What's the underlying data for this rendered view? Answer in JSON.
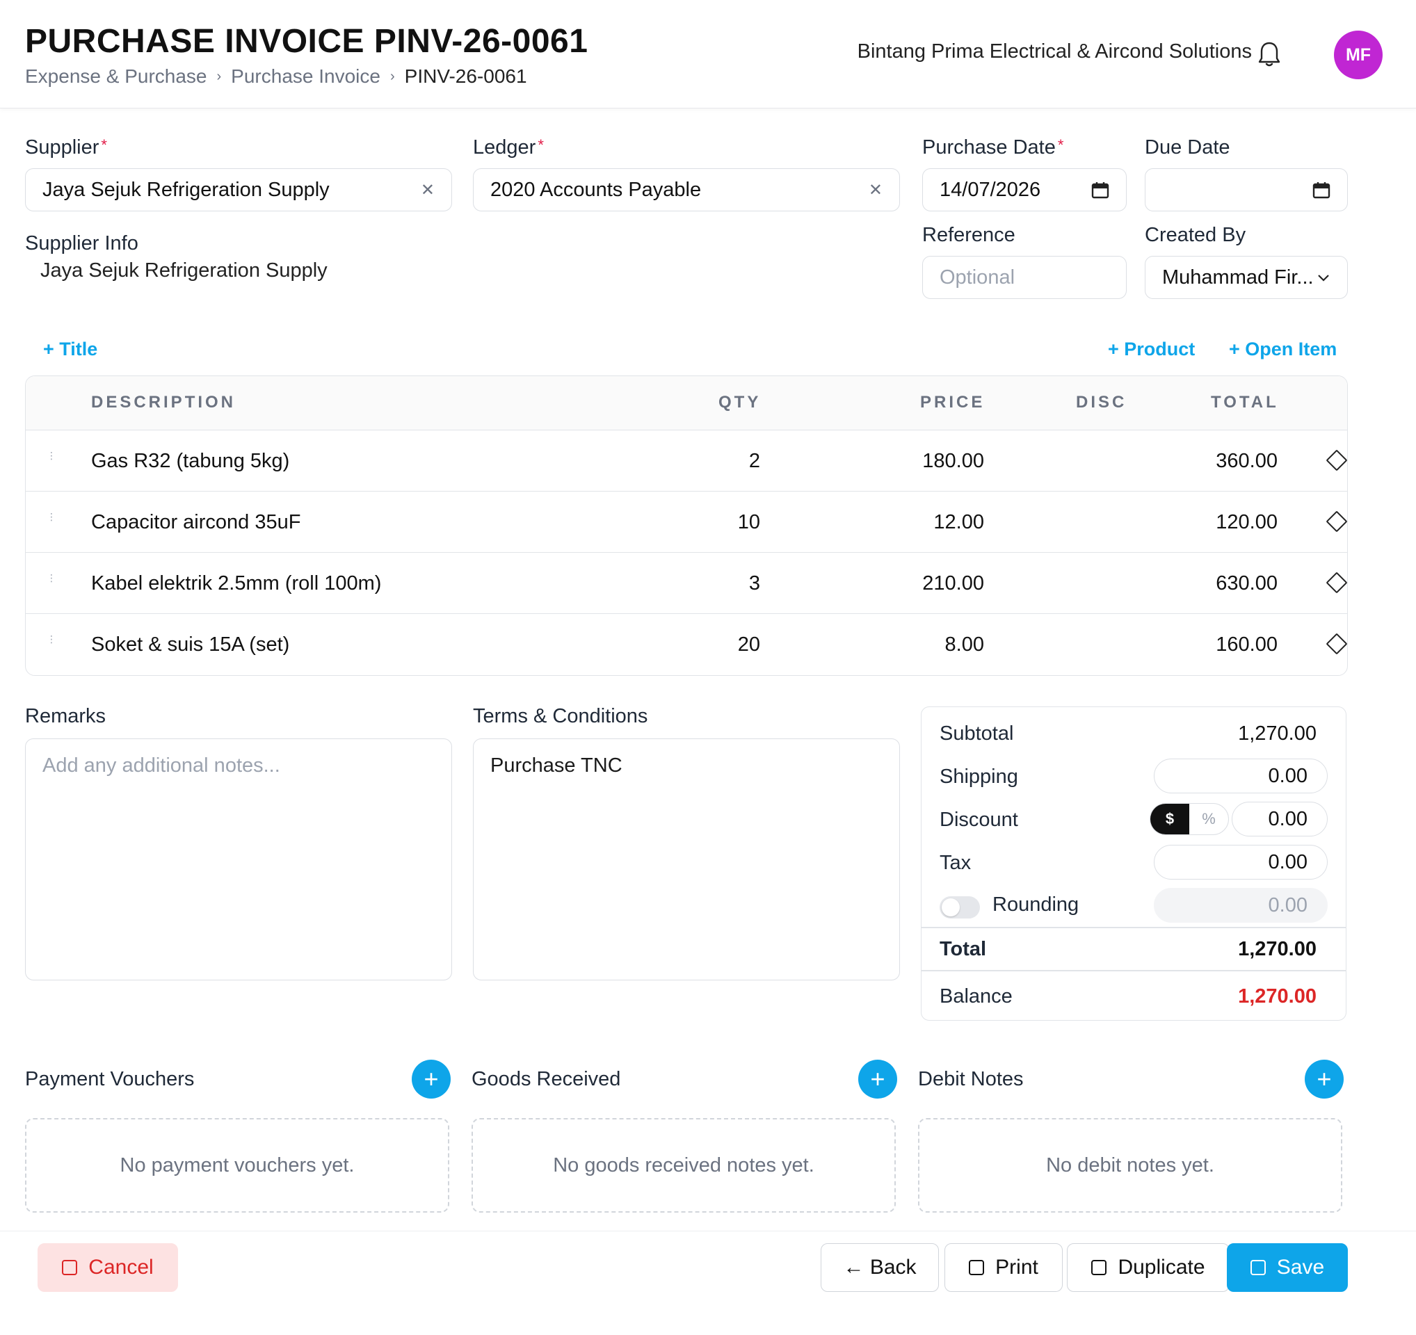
{
  "header": {
    "title": "PURCHASE INVOICE PINV-26-0061",
    "breadcrumb": [
      "Expense & Purchase",
      "Purchase Invoice",
      "PINV-26-0061"
    ],
    "company": "Bintang Prima Electrical & Aircond Solutions",
    "avatar_initials": "MF",
    "avatar_color": "#c026d3"
  },
  "form": {
    "supplier_label": "Supplier",
    "supplier_value": "Jaya Sejuk Refrigeration Supply",
    "ledger_label": "Ledger",
    "ledger_value": "2020 Accounts Payable",
    "purchase_date_label": "Purchase Date",
    "purchase_date_value": "14/07/2026",
    "due_date_label": "Due Date",
    "due_date_value": "",
    "reference_label": "Reference",
    "reference_placeholder": "Optional",
    "created_by_label": "Created By",
    "created_by_value": "Muhammad Fir...",
    "supplier_info_label": "Supplier Info",
    "supplier_info_value": "Jaya Sejuk Refrigeration Supply",
    "required_mark": "*"
  },
  "actions": {
    "add_title": "+ Title",
    "add_product": "+ Product",
    "add_open_item": "+ Open Item"
  },
  "items": {
    "columns": [
      "DESCRIPTION",
      "QTY",
      "PRICE",
      "DISC",
      "TOTAL"
    ],
    "rows": [
      {
        "description": "Gas R32 (tabung 5kg)",
        "qty": "2",
        "price": "180.00",
        "disc": "",
        "total": "360.00"
      },
      {
        "description": "Capacitor aircond 35uF",
        "qty": "10",
        "price": "12.00",
        "disc": "",
        "total": "120.00"
      },
      {
        "description": "Kabel elektrik 2.5mm (roll 100m)",
        "qty": "3",
        "price": "210.00",
        "disc": "",
        "total": "630.00"
      },
      {
        "description": "Soket & suis 15A (set)",
        "qty": "20",
        "price": "8.00",
        "disc": "",
        "total": "160.00"
      }
    ]
  },
  "remarks": {
    "label": "Remarks",
    "placeholder": "Add any additional notes..."
  },
  "terms": {
    "label": "Terms & Conditions",
    "value": "Purchase TNC"
  },
  "summary": {
    "subtotal_label": "Subtotal",
    "subtotal": "1,270.00",
    "shipping_label": "Shipping",
    "shipping": "0.00",
    "discount_label": "Discount",
    "discount_mode_dollar": "$",
    "discount_mode_percent": "%",
    "discount": "0.00",
    "tax_label": "Tax",
    "tax": "0.00",
    "rounding_label": "Rounding",
    "rounding": "0.00",
    "total_label": "Total",
    "total": "1,270.00",
    "balance_label": "Balance",
    "balance": "1,270.00",
    "balance_color": "#dc2626"
  },
  "related": {
    "payment_vouchers": {
      "title": "Payment Vouchers",
      "empty": "No payment vouchers yet."
    },
    "goods_received": {
      "title": "Goods Received",
      "empty": "No goods received notes yet."
    },
    "debit_notes": {
      "title": "Debit Notes",
      "empty": "No debit notes yet."
    }
  },
  "footer": {
    "cancel": "Cancel",
    "back": "← Back",
    "print": "Print",
    "duplicate": "Duplicate",
    "save": "Save"
  },
  "colors": {
    "accent": "#0ea5e9",
    "danger": "#dc2626",
    "danger_bg": "#fde2e2"
  }
}
